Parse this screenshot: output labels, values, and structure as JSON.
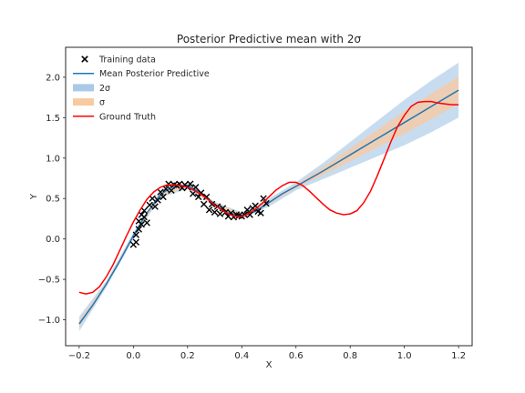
{
  "chart_data": {
    "type": "line",
    "title": "Posterior Predictive mean with 2σ",
    "xlabel": "X",
    "ylabel": "Y",
    "xlim": [
      -0.25,
      1.25
    ],
    "ylim": [
      -1.32,
      2.37
    ],
    "xticks": [
      -0.2,
      0.0,
      0.2,
      0.4,
      0.6,
      0.8,
      1.0,
      1.2
    ],
    "xtick_labels": [
      "−0.2",
      "0.0",
      "0.2",
      "0.4",
      "0.6",
      "0.8",
      "1.0",
      "1.2"
    ],
    "yticks": [
      -1.0,
      -0.5,
      0.0,
      0.5,
      1.0,
      1.5,
      2.0
    ],
    "ytick_labels": [
      "−1.0",
      "−0.5",
      "0.0",
      "0.5",
      "1.0",
      "1.5",
      "2.0"
    ],
    "grid": false,
    "legend_position": "top-left",
    "legend": [
      {
        "label": "Training data",
        "kind": "marker",
        "color": "#000000"
      },
      {
        "label": "Mean Posterior Predictive",
        "kind": "line",
        "color": "#1f77b4"
      },
      {
        "label": "2σ",
        "kind": "patch",
        "color": "#aac9e6"
      },
      {
        "label": "σ",
        "kind": "patch",
        "color": "#f9c9a0"
      },
      {
        "label": "Ground Truth",
        "kind": "line",
        "color": "#ff0000"
      }
    ],
    "series": [
      {
        "name": "Training data",
        "kind": "scatter",
        "color": "#000000",
        "x": [
          0.0,
          0.01,
          0.01,
          0.02,
          0.02,
          0.03,
          0.03,
          0.04,
          0.04,
          0.05,
          0.06,
          0.07,
          0.08,
          0.09,
          0.1,
          0.11,
          0.12,
          0.13,
          0.14,
          0.15,
          0.16,
          0.17,
          0.18,
          0.19,
          0.2,
          0.21,
          0.22,
          0.23,
          0.24,
          0.25,
          0.26,
          0.27,
          0.28,
          0.29,
          0.3,
          0.31,
          0.32,
          0.33,
          0.34,
          0.35,
          0.36,
          0.37,
          0.38,
          0.39,
          0.4,
          0.41,
          0.42,
          0.43,
          0.44,
          0.45,
          0.46,
          0.47,
          0.48,
          0.49
        ],
        "y": [
          -0.07,
          0.05,
          -0.04,
          0.12,
          0.22,
          0.3,
          0.18,
          0.35,
          0.27,
          0.2,
          0.42,
          0.5,
          0.4,
          0.48,
          0.58,
          0.52,
          0.62,
          0.68,
          0.6,
          0.67,
          0.66,
          0.68,
          0.63,
          0.67,
          0.64,
          0.68,
          0.56,
          0.64,
          0.52,
          0.57,
          0.43,
          0.52,
          0.36,
          0.43,
          0.33,
          0.4,
          0.31,
          0.38,
          0.33,
          0.28,
          0.32,
          0.27,
          0.3,
          0.29,
          0.28,
          0.3,
          0.36,
          0.3,
          0.38,
          0.41,
          0.34,
          0.32,
          0.5,
          0.44
        ]
      },
      {
        "name": "Mean Posterior Predictive",
        "kind": "line",
        "color": "#1f77b4",
        "x": [
          -0.2,
          -0.15,
          -0.1,
          -0.05,
          0.0,
          0.05,
          0.1,
          0.15,
          0.2,
          0.25,
          0.3,
          0.35,
          0.4,
          0.45,
          0.5,
          0.55,
          0.6,
          0.7,
          0.8,
          0.9,
          1.0,
          1.1,
          1.2
        ],
        "y": [
          -1.05,
          -0.82,
          -0.56,
          -0.27,
          0.04,
          0.32,
          0.55,
          0.66,
          0.66,
          0.57,
          0.43,
          0.32,
          0.29,
          0.34,
          0.45,
          0.56,
          0.65,
          0.84,
          1.04,
          1.24,
          1.44,
          1.64,
          1.84
        ]
      },
      {
        "name": "2σ",
        "kind": "band",
        "color": "#aac9e6",
        "x": [
          -0.2,
          -0.1,
          0.0,
          0.1,
          0.2,
          0.3,
          0.4,
          0.5,
          0.6,
          0.7,
          0.8,
          0.9,
          1.0,
          1.1,
          1.2
        ],
        "lower": [
          -1.14,
          -0.6,
          0.0,
          0.51,
          0.62,
          0.4,
          0.25,
          0.4,
          0.6,
          0.74,
          0.88,
          1.02,
          1.16,
          1.32,
          1.5
        ],
        "upper": [
          -0.96,
          -0.52,
          0.08,
          0.59,
          0.7,
          0.46,
          0.33,
          0.5,
          0.7,
          0.94,
          1.2,
          1.46,
          1.72,
          1.96,
          2.18
        ]
      },
      {
        "name": "σ",
        "kind": "band",
        "color": "#f9c9a0",
        "x": [
          -0.2,
          -0.1,
          0.0,
          0.1,
          0.2,
          0.3,
          0.4,
          0.5,
          0.6,
          0.7,
          0.8,
          0.9,
          1.0,
          1.1,
          1.2
        ],
        "lower": [
          -1.09,
          -0.58,
          0.02,
          0.53,
          0.64,
          0.41,
          0.27,
          0.43,
          0.63,
          0.79,
          0.96,
          1.13,
          1.3,
          1.48,
          1.67
        ],
        "upper": [
          -1.01,
          -0.54,
          0.06,
          0.57,
          0.68,
          0.45,
          0.31,
          0.47,
          0.67,
          0.89,
          1.12,
          1.35,
          1.58,
          1.8,
          2.01
        ]
      },
      {
        "name": "Ground Truth",
        "kind": "line",
        "color": "#ff0000",
        "x": [
          -0.2,
          -0.175,
          -0.15,
          -0.125,
          -0.1,
          -0.075,
          -0.05,
          -0.025,
          0.0,
          0.025,
          0.05,
          0.075,
          0.1,
          0.125,
          0.15,
          0.175,
          0.2,
          0.225,
          0.25,
          0.275,
          0.3,
          0.325,
          0.35,
          0.375,
          0.4,
          0.425,
          0.45,
          0.475,
          0.5,
          0.525,
          0.55,
          0.575,
          0.6,
          0.625,
          0.65,
          0.675,
          0.7,
          0.725,
          0.75,
          0.775,
          0.8,
          0.825,
          0.85,
          0.875,
          0.9,
          0.925,
          0.95,
          0.975,
          1.0,
          1.025,
          1.05,
          1.075,
          1.1,
          1.125,
          1.15,
          1.175,
          1.2
        ],
        "y": [
          -0.66,
          -0.68,
          -0.66,
          -0.59,
          -0.47,
          -0.32,
          -0.14,
          0.04,
          0.21,
          0.36,
          0.49,
          0.58,
          0.64,
          0.67,
          0.67,
          0.66,
          0.64,
          0.6,
          0.55,
          0.49,
          0.42,
          0.36,
          0.31,
          0.28,
          0.28,
          0.31,
          0.37,
          0.44,
          0.52,
          0.6,
          0.66,
          0.7,
          0.7,
          0.66,
          0.59,
          0.51,
          0.43,
          0.36,
          0.32,
          0.3,
          0.31,
          0.35,
          0.45,
          0.59,
          0.78,
          0.99,
          1.2,
          1.39,
          1.53,
          1.64,
          1.69,
          1.7,
          1.7,
          1.68,
          1.67,
          1.66,
          1.66
        ]
      }
    ]
  }
}
